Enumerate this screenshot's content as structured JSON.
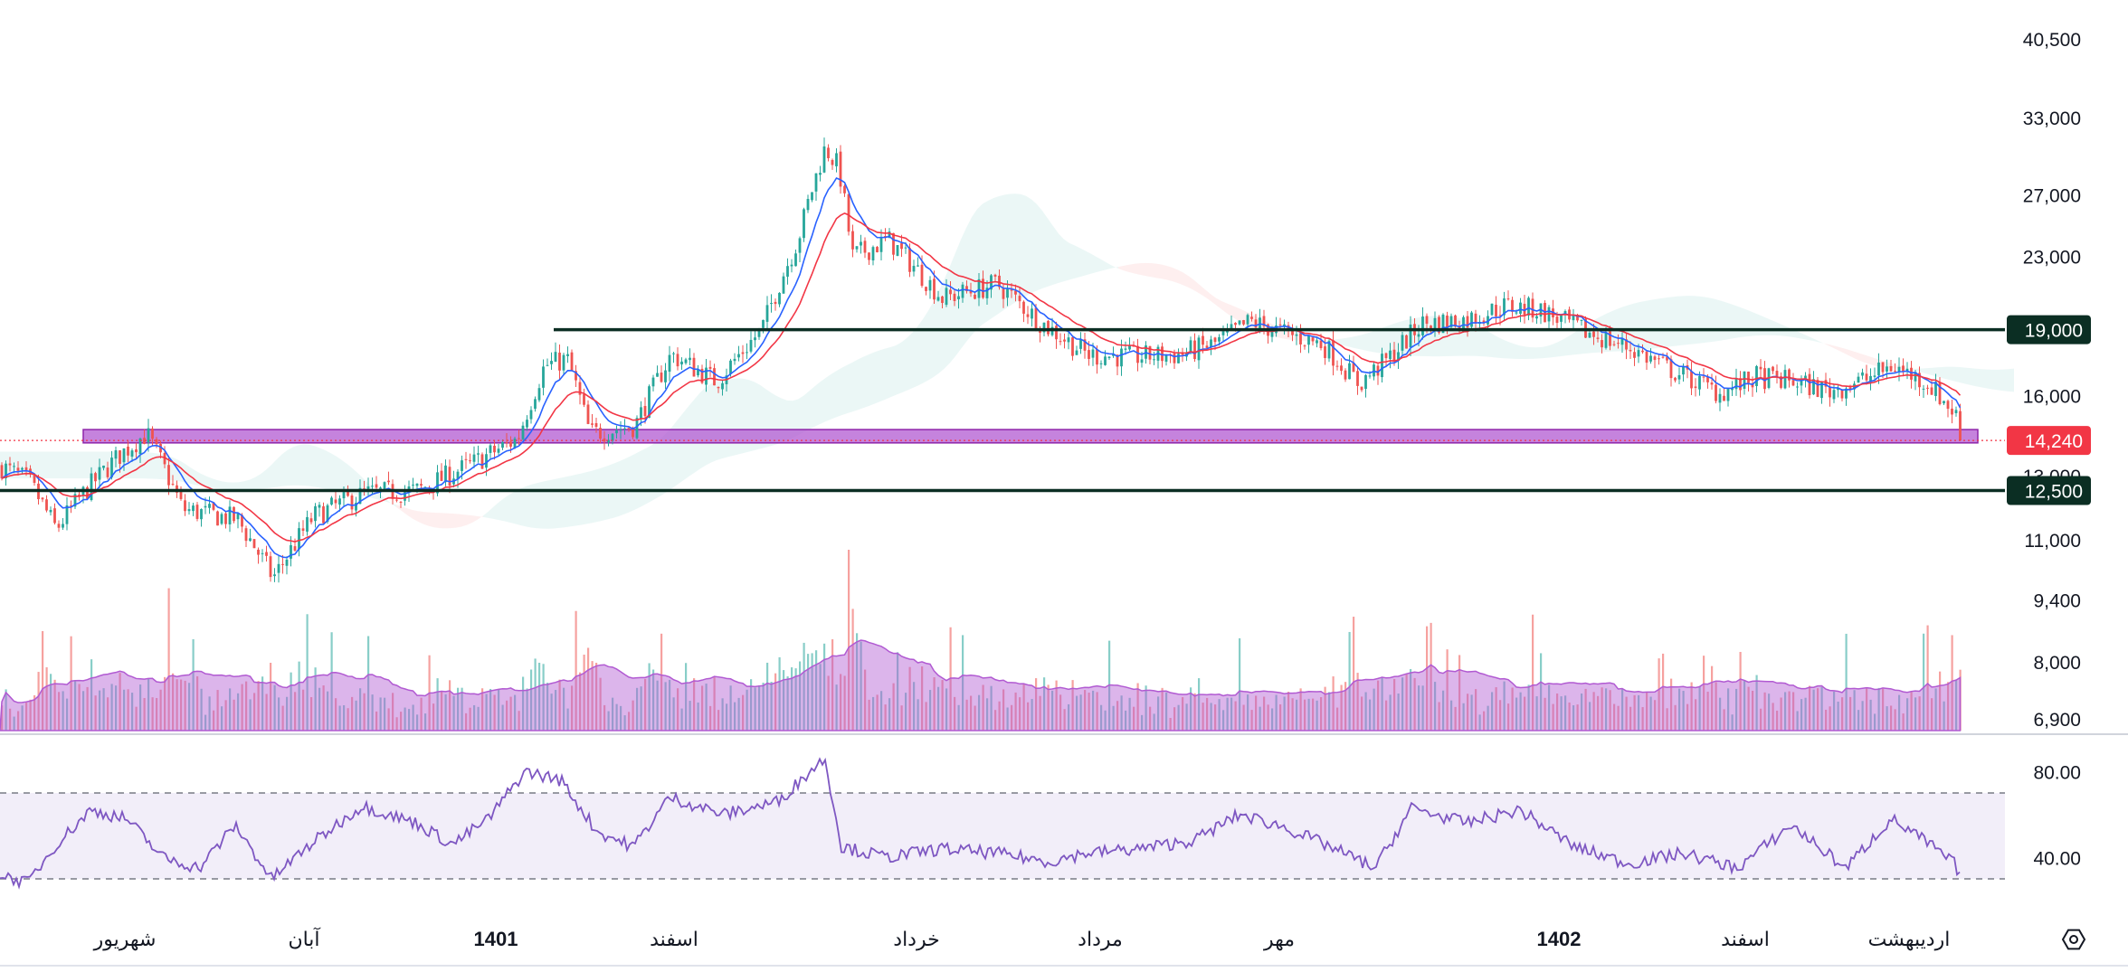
{
  "chart_data": {
    "type": "candlestick",
    "price_axis": {
      "scale": "log",
      "ticks": [
        {
          "value": 40500,
          "label": "40,500"
        },
        {
          "value": 33000,
          "label": "33,000"
        },
        {
          "value": 27000,
          "label": "27,000"
        },
        {
          "value": 23000,
          "label": "23,000"
        },
        {
          "value": 19000,
          "label": "19,000"
        },
        {
          "value": 16000,
          "label": "16,000"
        },
        {
          "value": 13000,
          "label": "13,000"
        },
        {
          "value": 11000,
          "label": "11,000"
        },
        {
          "value": 9400,
          "label": "9,400"
        },
        {
          "value": 8000,
          "label": "8,000"
        },
        {
          "value": 6900,
          "label": "6,900"
        }
      ]
    },
    "time_axis": {
      "labels": [
        "شهریور",
        "آبان",
        "1401",
        "اسفند",
        "خرداد",
        "مرداد",
        "مهر",
        "1402",
        "اسفند",
        "اردیبهشت"
      ],
      "bold": [
        false,
        false,
        true,
        false,
        false,
        false,
        false,
        true,
        false,
        false
      ]
    },
    "current_price": {
      "value": 14240,
      "label": "14,240",
      "color": "#f23645"
    },
    "horizontal_levels": [
      {
        "value": 19000,
        "label": "19,000",
        "color": "#0b2e23"
      },
      {
        "value": 12500,
        "label": "12,500",
        "color": "#0b2e23"
      }
    ],
    "support_zone": {
      "low": 14150,
      "high": 14650,
      "color": "#b15ad2"
    },
    "series": [
      {
        "kind": "price",
        "up_color": "#26a69a",
        "down_color": "#ef5350",
        "anchors": [
          [
            0,
            13300
          ],
          [
            30,
            12800
          ],
          [
            60,
            11300
          ],
          [
            90,
            12400
          ],
          [
            130,
            13700
          ],
          [
            160,
            14500
          ],
          [
            200,
            11900
          ],
          [
            260,
            11600
          ],
          [
            300,
            9950
          ],
          [
            345,
            11700
          ],
          [
            400,
            12400
          ],
          [
            460,
            12500
          ],
          [
            520,
            13400
          ],
          [
            570,
            14300
          ],
          [
            600,
            17300
          ],
          [
            625,
            17600
          ],
          [
            650,
            14500
          ],
          [
            700,
            14800
          ],
          [
            740,
            17800
          ],
          [
            790,
            16600
          ],
          [
            840,
            19000
          ],
          [
            880,
            24000
          ],
          [
            910,
            30500
          ],
          [
            925,
            29000
          ],
          [
            940,
            23000
          ],
          [
            980,
            24000
          ],
          [
            1040,
            20600
          ],
          [
            1100,
            21400
          ],
          [
            1150,
            19300
          ],
          [
            1200,
            17800
          ],
          [
            1250,
            17700
          ],
          [
            1300,
            17800
          ],
          [
            1340,
            18300
          ],
          [
            1380,
            19400
          ],
          [
            1420,
            18800
          ],
          [
            1460,
            18300
          ],
          [
            1500,
            16500
          ],
          [
            1530,
            17500
          ],
          [
            1570,
            19300
          ],
          [
            1620,
            19500
          ],
          [
            1660,
            20200
          ],
          [
            1700,
            20000
          ],
          [
            1750,
            18900
          ],
          [
            1800,
            18100
          ],
          [
            1850,
            17000
          ],
          [
            1900,
            16100
          ],
          [
            1940,
            16800
          ],
          [
            1980,
            16600
          ],
          [
            2020,
            16200
          ],
          [
            2060,
            16700
          ],
          [
            2090,
            17300
          ],
          [
            2130,
            16500
          ],
          [
            2160,
            15200
          ],
          [
            2168,
            14240
          ]
        ]
      },
      {
        "kind": "ema_fast",
        "color": "#2962ff"
      },
      {
        "kind": "ema_slow",
        "color": "#f23645"
      },
      {
        "kind": "ichimoku_cloud",
        "bull_color": "#26a69a",
        "bear_color": "#ef5350"
      },
      {
        "kind": "volume",
        "baseline": 6900,
        "ma_color": "#b15ad2"
      },
      {
        "kind": "rsi",
        "color": "#7e57c2",
        "levels": [
          {
            "value": 70,
            "style": "dashed"
          },
          {
            "value": 30,
            "style": "dashed"
          }
        ],
        "ticks": [
          {
            "value": 80,
            "label": "80.00"
          },
          {
            "value": 40,
            "label": "40.00"
          }
        ],
        "anchors": [
          [
            0,
            32
          ],
          [
            30,
            28
          ],
          [
            60,
            45
          ],
          [
            100,
            62
          ],
          [
            140,
            58
          ],
          [
            180,
            40
          ],
          [
            220,
            35
          ],
          [
            260,
            55
          ],
          [
            300,
            30
          ],
          [
            340,
            45
          ],
          [
            400,
            64
          ],
          [
            460,
            56
          ],
          [
            500,
            46
          ],
          [
            540,
            58
          ],
          [
            580,
            80
          ],
          [
            620,
            76
          ],
          [
            660,
            52
          ],
          [
            700,
            45
          ],
          [
            740,
            68
          ],
          [
            800,
            60
          ],
          [
            860,
            66
          ],
          [
            900,
            82
          ],
          [
            912,
            86
          ],
          [
            930,
            45
          ],
          [
            980,
            40
          ],
          [
            1040,
            44
          ],
          [
            1100,
            42
          ],
          [
            1160,
            38
          ],
          [
            1200,
            42
          ],
          [
            1260,
            44
          ],
          [
            1320,
            48
          ],
          [
            1370,
            60
          ],
          [
            1420,
            54
          ],
          [
            1470,
            45
          ],
          [
            1520,
            35
          ],
          [
            1560,
            63
          ],
          [
            1620,
            56
          ],
          [
            1680,
            62
          ],
          [
            1740,
            45
          ],
          [
            1800,
            37
          ],
          [
            1860,
            42
          ],
          [
            1920,
            35
          ],
          [
            1980,
            55
          ],
          [
            2040,
            35
          ],
          [
            2090,
            58
          ],
          [
            2130,
            47
          ],
          [
            2160,
            37
          ],
          [
            2168,
            30
          ]
        ]
      }
    ]
  },
  "ui": {
    "settings_icon": "hexagon-gear-icon"
  }
}
